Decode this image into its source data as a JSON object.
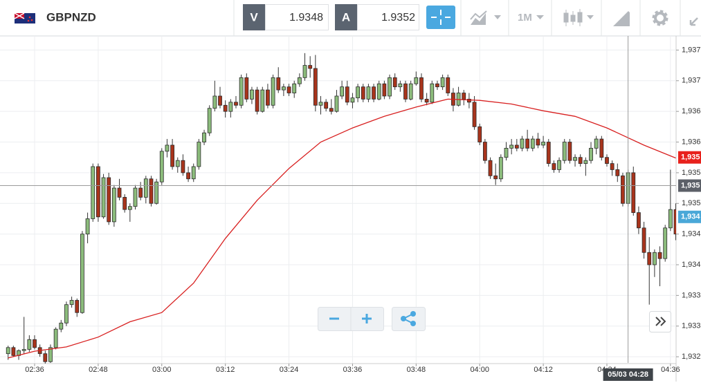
{
  "header": {
    "symbol": "GBPNZD",
    "bid_label": "V",
    "bid": "1.9348",
    "ask_label": "A",
    "ask": "1.9352",
    "timeframe": "1M"
  },
  "chart_data": {
    "type": "candlestick",
    "ylim": [
      1.9324,
      1.93773
    ],
    "yticks": [
      {
        "value": 1.9375,
        "label": "1,937"
      },
      {
        "value": 1.937,
        "label": "1,937"
      },
      {
        "value": 1.9365,
        "label": "1,936"
      },
      {
        "value": 1.936,
        "label": "1,936"
      },
      {
        "value": 1.9355,
        "label": "1,935"
      },
      {
        "value": 1.935,
        "label": "1,935"
      },
      {
        "value": 1.9345,
        "label": "1,934"
      },
      {
        "value": 1.934,
        "label": "1,934"
      },
      {
        "value": 1.9335,
        "label": "1,933"
      },
      {
        "value": 1.933,
        "label": "1,933"
      },
      {
        "value": 1.9325,
        "label": "1,932"
      }
    ],
    "xlim": [
      -1.27,
      125.8
    ],
    "xticks": [
      {
        "value": 5,
        "label": "02:36"
      },
      {
        "value": 17,
        "label": "02:48"
      },
      {
        "value": 29,
        "label": "03:00"
      },
      {
        "value": 41,
        "label": "03:12"
      },
      {
        "value": 53,
        "label": "03:24"
      },
      {
        "value": 65,
        "label": "03:36"
      },
      {
        "value": 77,
        "label": "03:48"
      },
      {
        "value": 89,
        "label": "04:00"
      },
      {
        "value": 101,
        "label": "04:12"
      },
      {
        "value": 113,
        "label": "04:24"
      },
      {
        "value": 125,
        "label": "04:36"
      }
    ],
    "up_color": "#8cbc7c",
    "down_color": "#a8341c",
    "candles": [
      [
        1.93255,
        1.93268,
        1.93245,
        1.93265
      ],
      [
        1.93265,
        1.93268,
        1.9325,
        1.93252
      ],
      [
        1.93252,
        1.93262,
        1.93245,
        1.9326
      ],
      [
        1.9326,
        1.93315,
        1.93255,
        1.93262
      ],
      [
        1.93262,
        1.93285,
        1.93258,
        1.93278
      ],
      [
        1.93278,
        1.93285,
        1.93262,
        1.93265
      ],
      [
        1.93265,
        1.9327,
        1.9325,
        1.93255
      ],
      [
        1.93255,
        1.9326,
        1.93238,
        1.93242
      ],
      [
        1.93242,
        1.9327,
        1.9324,
        1.93265
      ],
      [
        1.93265,
        1.93298,
        1.93262,
        1.93295
      ],
      [
        1.93295,
        1.9331,
        1.9329,
        1.93305
      ],
      [
        1.93305,
        1.9334,
        1.933,
        1.93335
      ],
      [
        1.93335,
        1.93348,
        1.9333,
        1.93342
      ],
      [
        1.93342,
        1.93345,
        1.93315,
        1.93322
      ],
      [
        1.93322,
        1.93455,
        1.9332,
        1.9345
      ],
      [
        1.9345,
        1.93485,
        1.93435,
        1.93475
      ],
      [
        1.93475,
        1.93565,
        1.9347,
        1.9356
      ],
      [
        1.9356,
        1.93565,
        1.9347,
        1.93478
      ],
      [
        1.93478,
        1.93548,
        1.93475,
        1.93542
      ],
      [
        1.93542,
        1.9355,
        1.93465,
        1.9347
      ],
      [
        1.9347,
        1.9353,
        1.93462,
        1.93525
      ],
      [
        1.93525,
        1.9354,
        1.93505,
        1.9351
      ],
      [
        1.9351,
        1.93515,
        1.93485,
        1.9349
      ],
      [
        1.9349,
        1.935,
        1.9347,
        1.93495
      ],
      [
        1.93495,
        1.9353,
        1.9349,
        1.93525
      ],
      [
        1.93525,
        1.93535,
        1.93505,
        1.9351
      ],
      [
        1.9351,
        1.93545,
        1.935,
        1.9354
      ],
      [
        1.9354,
        1.93545,
        1.93495,
        1.935
      ],
      [
        1.935,
        1.9354,
        1.93498,
        1.93535
      ],
      [
        1.93535,
        1.9359,
        1.9353,
        1.93585
      ],
      [
        1.93585,
        1.93605,
        1.93575,
        1.93595
      ],
      [
        1.93595,
        1.93605,
        1.93555,
        1.9356
      ],
      [
        1.9356,
        1.93575,
        1.9355,
        1.9357
      ],
      [
        1.9357,
        1.9358,
        1.93545,
        1.9355
      ],
      [
        1.9355,
        1.9356,
        1.93535,
        1.9354
      ],
      [
        1.9354,
        1.93565,
        1.93535,
        1.9356
      ],
      [
        1.9356,
        1.93605,
        1.93555,
        1.936
      ],
      [
        1.936,
        1.9362,
        1.93595,
        1.93615
      ],
      [
        1.93615,
        1.9366,
        1.9361,
        1.93655
      ],
      [
        1.93655,
        1.937,
        1.9365,
        1.93675
      ],
      [
        1.93675,
        1.9369,
        1.93655,
        1.9366
      ],
      [
        1.9366,
        1.93668,
        1.9364,
        1.9365
      ],
      [
        1.9365,
        1.9367,
        1.9364,
        1.93665
      ],
      [
        1.93665,
        1.93675,
        1.93655,
        1.9366
      ],
      [
        1.9366,
        1.9371,
        1.93655,
        1.93705
      ],
      [
        1.93705,
        1.93712,
        1.93665,
        1.9367
      ],
      [
        1.9367,
        1.9369,
        1.93662,
        1.93685
      ],
      [
        1.93685,
        1.9369,
        1.93645,
        1.9365
      ],
      [
        1.9365,
        1.9369,
        1.93648,
        1.93685
      ],
      [
        1.93685,
        1.93695,
        1.93655,
        1.9366
      ],
      [
        1.9366,
        1.9371,
        1.93655,
        1.93705
      ],
      [
        1.93705,
        1.93722,
        1.9368,
        1.93685
      ],
      [
        1.93685,
        1.93695,
        1.93675,
        1.9369
      ],
      [
        1.9369,
        1.93695,
        1.93675,
        1.9368
      ],
      [
        1.9368,
        1.937,
        1.93672,
        1.93695
      ],
      [
        1.93695,
        1.93712,
        1.9369,
        1.93705
      ],
      [
        1.93705,
        1.93745,
        1.937,
        1.93725
      ],
      [
        1.93725,
        1.9374,
        1.93705,
        1.9372
      ],
      [
        1.9372,
        1.93742,
        1.9365,
        1.9366
      ],
      [
        1.9366,
        1.93675,
        1.93645,
        1.93665
      ],
      [
        1.93665,
        1.9367,
        1.9365,
        1.93655
      ],
      [
        1.93655,
        1.9367,
        1.93645,
        1.9365
      ],
      [
        1.9365,
        1.93685,
        1.93648,
        1.93675
      ],
      [
        1.93675,
        1.937,
        1.9367,
        1.9369
      ],
      [
        1.9369,
        1.937,
        1.9366,
        1.93665
      ],
      [
        1.93665,
        1.9368,
        1.93655,
        1.93672
      ],
      [
        1.93672,
        1.93695,
        1.93665,
        1.9369
      ],
      [
        1.9369,
        1.93695,
        1.93665,
        1.9367
      ],
      [
        1.9367,
        1.93695,
        1.93665,
        1.9369
      ],
      [
        1.9369,
        1.93695,
        1.93665,
        1.9367
      ],
      [
        1.9367,
        1.937,
        1.93668,
        1.93695
      ],
      [
        1.93695,
        1.937,
        1.9367,
        1.93675
      ],
      [
        1.93675,
        1.9371,
        1.9367,
        1.93705
      ],
      [
        1.93705,
        1.93712,
        1.93685,
        1.9369
      ],
      [
        1.9369,
        1.937,
        1.93682,
        1.93695
      ],
      [
        1.93695,
        1.937,
        1.93665,
        1.9367
      ],
      [
        1.9367,
        1.937,
        1.93668,
        1.93695
      ],
      [
        1.93695,
        1.93715,
        1.93692,
        1.93705
      ],
      [
        1.93705,
        1.93712,
        1.93665,
        1.9367
      ],
      [
        1.9367,
        1.9368,
        1.9366,
        1.93665
      ],
      [
        1.93665,
        1.937,
        1.93662,
        1.93695
      ],
      [
        1.93695,
        1.937,
        1.93685,
        1.9369
      ],
      [
        1.9369,
        1.9371,
        1.93685,
        1.93705
      ],
      [
        1.93705,
        1.9371,
        1.93675,
        1.9368
      ],
      [
        1.9368,
        1.93688,
        1.9365,
        1.9366
      ],
      [
        1.9366,
        1.9369,
        1.93658,
        1.9368
      ],
      [
        1.9368,
        1.93685,
        1.9366,
        1.9367
      ],
      [
        1.9367,
        1.9368,
        1.93655,
        1.93665
      ],
      [
        1.93665,
        1.93675,
        1.9362,
        1.93625
      ],
      [
        1.93625,
        1.9363,
        1.93595,
        1.936
      ],
      [
        1.936,
        1.93605,
        1.93565,
        1.9357
      ],
      [
        1.9357,
        1.93575,
        1.9354,
        1.93545
      ],
      [
        1.93545,
        1.93565,
        1.9353,
        1.9354
      ],
      [
        1.9354,
        1.9358,
        1.93535,
        1.93575
      ],
      [
        1.93575,
        1.936,
        1.9357,
        1.9359
      ],
      [
        1.9359,
        1.93605,
        1.9358,
        1.93595
      ],
      [
        1.93595,
        1.93605,
        1.93585,
        1.9359
      ],
      [
        1.9359,
        1.9361,
        1.93585,
        1.93605
      ],
      [
        1.93605,
        1.9362,
        1.93585,
        1.9359
      ],
      [
        1.9359,
        1.9361,
        1.93585,
        1.93605
      ],
      [
        1.93605,
        1.93615,
        1.9359,
        1.93595
      ],
      [
        1.93595,
        1.9361,
        1.9359,
        1.936
      ],
      [
        1.936,
        1.93605,
        1.9356,
        1.93565
      ],
      [
        1.93565,
        1.9357,
        1.9355,
        1.93555
      ],
      [
        1.93555,
        1.93575,
        1.9355,
        1.9357
      ],
      [
        1.9357,
        1.93605,
        1.93565,
        1.936
      ],
      [
        1.936,
        1.93605,
        1.93565,
        1.9357
      ],
      [
        1.9357,
        1.9358,
        1.9356,
        1.93575
      ],
      [
        1.93575,
        1.9358,
        1.9356,
        1.93565
      ],
      [
        1.93565,
        1.93575,
        1.93545,
        1.9357
      ],
      [
        1.9357,
        1.936,
        1.93565,
        1.9359
      ],
      [
        1.9359,
        1.9361,
        1.9358,
        1.93605
      ],
      [
        1.93605,
        1.9361,
        1.9357,
        1.93575
      ],
      [
        1.93575,
        1.9358,
        1.9356,
        1.93565
      ],
      [
        1.93565,
        1.9357,
        1.93545,
        1.93555
      ],
      [
        1.93555,
        1.93565,
        1.93535,
        1.93545
      ],
      [
        1.93545,
        1.9355,
        1.93495,
        1.935
      ],
      [
        1.935,
        1.93555,
        1.93495,
        1.9355
      ],
      [
        1.9355,
        1.9356,
        1.9348,
        1.93485
      ],
      [
        1.93485,
        1.93495,
        1.9345,
        1.9346
      ],
      [
        1.9346,
        1.9347,
        1.9341,
        1.9342
      ],
      [
        1.9342,
        1.93445,
        1.93335,
        1.934
      ],
      [
        1.934,
        1.93425,
        1.9338,
        1.9342
      ],
      [
        1.9342,
        1.9343,
        1.93365,
        1.9341
      ],
      [
        1.9341,
        1.93465,
        1.93405,
        1.9346
      ],
      [
        1.9346,
        1.93555,
        1.93455,
        1.9349
      ],
      [
        1.9349,
        1.935,
        1.9344,
        1.9345
      ]
    ],
    "ma": {
      "color": "#d81f1f",
      "x": [
        0,
        5,
        11,
        17,
        23,
        29,
        35,
        41,
        47,
        53,
        59,
        65,
        71,
        77,
        83,
        89,
        95,
        101,
        107,
        113,
        120,
        126
      ],
      "values": [
        1.93248,
        1.93259,
        1.93266,
        1.93282,
        1.93307,
        1.93322,
        1.9337,
        1.93443,
        1.93505,
        1.93557,
        1.936,
        1.93623,
        1.93642,
        1.93657,
        1.9367,
        1.93668,
        1.93662,
        1.93651,
        1.93642,
        1.93623,
        1.93595,
        1.93574
      ]
    },
    "markers": [
      {
        "value": 1.93575,
        "label": "1,935",
        "color": "#e8211c"
      },
      {
        "value": 1.93478,
        "label": "1,934",
        "color": "#4aa8d8"
      }
    ],
    "crosshair": {
      "x": 117,
      "label": "05/03 04:28",
      "value": 1.93529,
      "price_label": "1,935",
      "color": "#5c6068"
    }
  }
}
